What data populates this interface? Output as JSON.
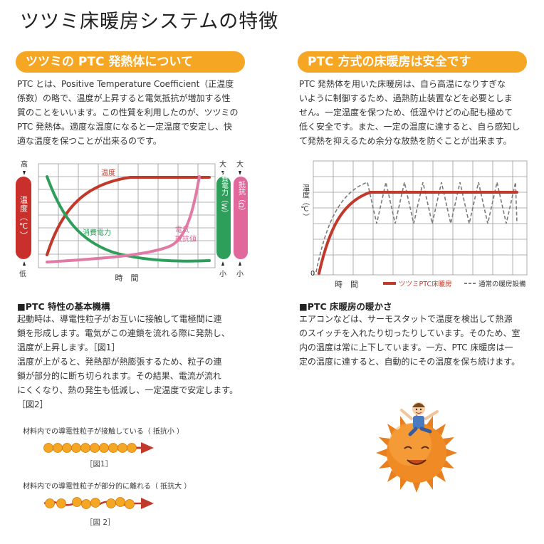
{
  "page_title": "ツツミ床暖房システムの特徴",
  "left": {
    "pill": "ツツミの PTC 発熱体について",
    "intro": [
      "PTC とは、Positive Temperature Coefficient（正温度",
      "係数）の略で、温度が上昇すると電気抵抗が増加する性",
      "質のことをいいます。この性質を利用したのが、ツツミの",
      "PTC 発熱体。適度な温度になると一定温度で安定し、快",
      "適な温度を保つことが出来るのです。"
    ],
    "chart": {
      "left_bar": "温度（℃）",
      "left_top": "高",
      "left_bottom": "低",
      "mid_bar": "消費電力（W）",
      "right_bar": "抵抗（Ω）",
      "mid_top": "大",
      "mid_bottom": "小",
      "right_top": "大",
      "right_bottom": "小",
      "label_temp": "温度",
      "label_power": "消費電力",
      "label_res1": "電気",
      "label_res2": "抵抗値",
      "xlabel": "時　間",
      "colors": {
        "temp": "#c0392b",
        "power": "#2e9e5b",
        "resistance": "#e07ba6",
        "bar_red": "#c9302c",
        "bar_green": "#2e9e5b",
        "bar_pink": "#e0689a"
      }
    },
    "mech_title": "■PTC 特性の基本機構",
    "mech": [
      "起動時は、導電性粒子がお互いに接触して電極間に連",
      "鎖を形成します。電気がこの連鎖を流れる際に発熱し、",
      "温度が上昇します。［図1］",
      "温度が上がると、発熱部が熱膨張するため、粒子の連",
      "鎖が部分的に断ち切られます。その結果、電流が流れ",
      "にくくなり、熱の発生も低減し、一定温度で安定します。",
      "［図2］"
    ],
    "fig1_text": "材料内での導電性粒子が接触している（ 抵抗小 ）",
    "fig1_cap": "［図1］",
    "fig2_text": "材料内での導電性粒子が部分的に離れる（ 抵抗大 ）",
    "fig2_cap": "［図 2］"
  },
  "right": {
    "pill": "PTC 方式の床暖房は安全です",
    "intro": [
      "PTC 発熱体を用いた床暖房は、自ら高温になりすぎな",
      "いように制御するため、過熱防止装置などを必要としま",
      "せん。一定温度を保つため、低温やけどの心配も極めて",
      "低く安全です。また、一定の温度に達すると、自ら感知し",
      "て発熱を抑えるため余分な放熱を防ぐことが出来ます。"
    ],
    "chart": {
      "ylabel": "温度（℃）",
      "origin": "0",
      "xlabel": "時　間",
      "legend_ptc": "ツツミPTC床暖房",
      "legend_normal": "通常の暖房設備",
      "colors": {
        "ptc": "#c0392b",
        "normal": "#777777"
      }
    },
    "warm_title": "■PTC 床暖房の暖かさ",
    "warm": [
      "エアコンなどは、サーモスタットで温度を検出して熱源",
      "のスイッチを入れたり切ったりしています。そのため、室",
      "内の温度は常に上下しています。一方、PTC 床暖房は一",
      "定の温度に達すると、自動的にその温度を保ち続けます。"
    ]
  },
  "colors": {
    "accent": "#f5a623",
    "bead": "#f5a623",
    "arrow": "#c0392b"
  }
}
